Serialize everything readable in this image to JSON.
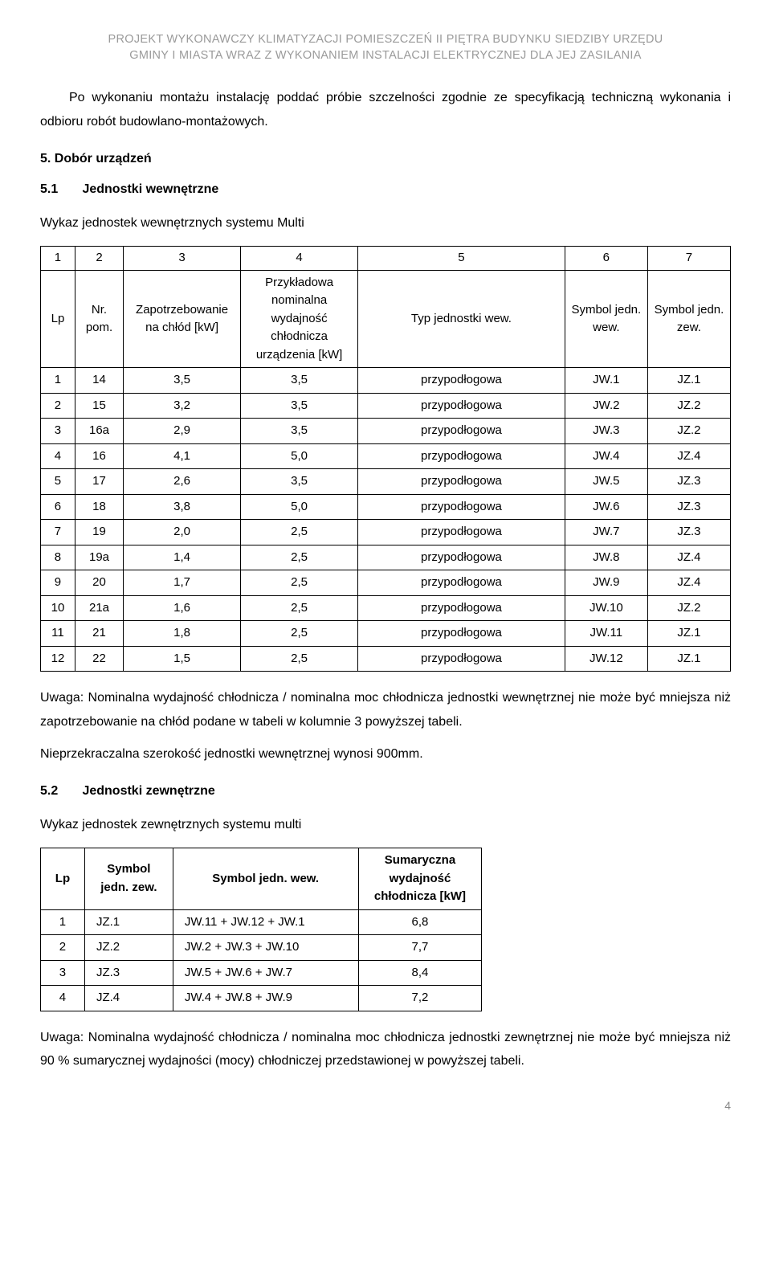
{
  "header": {
    "line1": "PROJEKT WYKONAWCZY KLIMATYZACJI POMIESZCZEŃ II PIĘTRA BUDYNKU SIEDZIBY URZĘDU",
    "line2": "GMINY I MIASTA WRAZ Z WYKONANIEM INSTALACJI ELEKTRYCZNEJ DLA JEJ ZASILANIA"
  },
  "p_intro": "Po wykonaniu montażu instalację poddać próbie szczelności zgodnie ze specyfikacją techniczną wykonania i odbioru robót budowlano-montażowych.",
  "h5": "5.    Dobór urządzeń",
  "h51_num": "5.1",
  "h51_txt": "Jednostki wewnętrzne",
  "cap1": "Wykaz jednostek wewnętrznych systemu Multi",
  "t1": {
    "top": [
      "1",
      "2",
      "3",
      "4",
      "5",
      "6",
      "7"
    ],
    "head": [
      "Lp",
      "Nr. pom.",
      "Zapotrzebowanie na chłód  [kW]",
      "Przykładowa nominalna wydajność chłodnicza urządzenia [kW]",
      "Typ jednostki wew.",
      "Symbol jedn. wew.",
      "Symbol jedn. zew."
    ],
    "rows": [
      [
        "1",
        "14",
        "3,5",
        "3,5",
        "przypodłogowa",
        "JW.1",
        "JZ.1"
      ],
      [
        "2",
        "15",
        "3,2",
        "3,5",
        "przypodłogowa",
        "JW.2",
        "JZ.2"
      ],
      [
        "3",
        "16a",
        "2,9",
        "3,5",
        "przypodłogowa",
        "JW.3",
        "JZ.2"
      ],
      [
        "4",
        "16",
        "4,1",
        "5,0",
        "przypodłogowa",
        "JW.4",
        "JZ.4"
      ],
      [
        "5",
        "17",
        "2,6",
        "3,5",
        "przypodłogowa",
        "JW.5",
        "JZ.3"
      ],
      [
        "6",
        "18",
        "3,8",
        "5,0",
        "przypodłogowa",
        "JW.6",
        "JZ.3"
      ],
      [
        "7",
        "19",
        "2,0",
        "2,5",
        "przypodłogowa",
        "JW.7",
        "JZ.3"
      ],
      [
        "8",
        "19a",
        "1,4",
        "2,5",
        "przypodłogowa",
        "JW.8",
        "JZ.4"
      ],
      [
        "9",
        "20",
        "1,7",
        "2,5",
        "przypodłogowa",
        "JW.9",
        "JZ.4"
      ],
      [
        "10",
        "21a",
        "1,6",
        "2,5",
        "przypodłogowa",
        "JW.10",
        "JZ.2"
      ],
      [
        "11",
        "21",
        "1,8",
        "2,5",
        "przypodłogowa",
        "JW.11",
        "JZ.1"
      ],
      [
        "12",
        "22",
        "1,5",
        "2,5",
        "przypodłogowa",
        "JW.12",
        "JZ.1"
      ]
    ]
  },
  "note1": "Uwaga: Nominalna wydajność chłodnicza / nominalna moc chłodnicza jednostki wewnętrznej nie może być mniejsza niż zapotrzebowanie na chłód  podane w tabeli w kolumnie 3 powyższej tabeli.",
  "note1b": "Nieprzekraczalna szerokość jednostki wewnętrznej wynosi 900mm.",
  "h52_num": "5.2",
  "h52_txt": "Jednostki zewnętrzne",
  "cap2": "Wykaz jednostek zewnętrznych systemu multi",
  "t2": {
    "head": [
      "Lp",
      "Symbol jedn. zew.",
      "Symbol jedn. wew.",
      "Sumaryczna wydajność chłodnicza [kW]"
    ],
    "rows": [
      [
        "1",
        "JZ.1",
        "JW.11 + JW.12 + JW.1",
        "6,8"
      ],
      [
        "2",
        "JZ.2",
        "JW.2 + JW.3 + JW.10",
        "7,7"
      ],
      [
        "3",
        "JZ.3",
        "JW.5 + JW.6 + JW.7",
        "8,4"
      ],
      [
        "4",
        "JZ.4",
        "JW.4 + JW.8 + JW.9",
        "7,2"
      ]
    ]
  },
  "note2": "Uwaga: Nominalna wydajność chłodnicza / nominalna moc chłodnicza jednostki zewnętrznej nie może być mniejsza niż 90 % sumarycznej wydajności (mocy) chłodniczej przedstawionej w powyższej tabeli.",
  "page_num": "4",
  "colors": {
    "muted": "#9a9a9a",
    "text": "#000000",
    "bg": "#ffffff"
  }
}
